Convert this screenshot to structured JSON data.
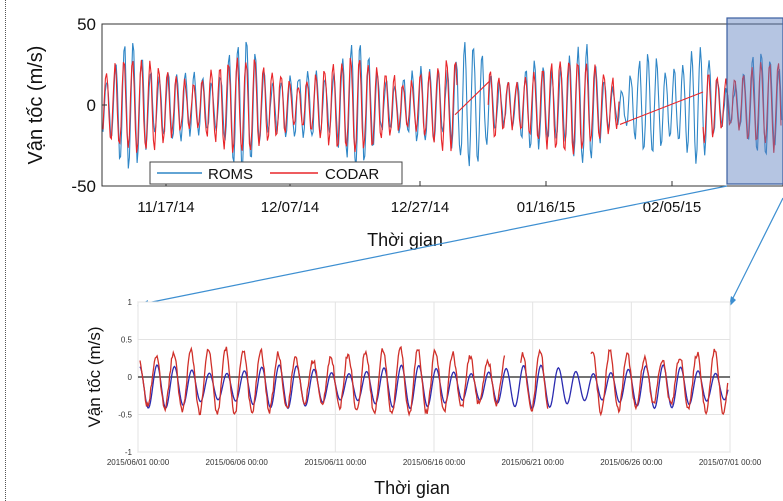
{
  "charts": [
    {
      "id": "top",
      "type": "line",
      "ylabel": "Vận tốc (m/s)",
      "xlabel": "Thời gian",
      "y_ticks": [
        50,
        0,
        -50
      ],
      "x_ticks": [
        "11/17/14",
        "12/07/14",
        "12/27/14",
        "01/16/15",
        "02/05/15"
      ],
      "ylim": [
        -50,
        50
      ],
      "legend": {
        "placement": "bottom-left",
        "entries": [
          "ROMS",
          "CODAR"
        ]
      },
      "series": [
        {
          "name": "ROMS",
          "color": "#2f86c6"
        },
        {
          "name": "CODAR",
          "color": "#e8262a"
        }
      ],
      "highlight": {
        "color": "#4a6fb5",
        "range": "last ~month of record (zoom window)"
      }
    },
    {
      "id": "bottom",
      "type": "line",
      "ylabel": "Vận tốc (m/s)",
      "xlabel": "Thời gian",
      "y_ticks": [
        "1",
        "0.5",
        "0",
        "-0.5",
        "-1"
      ],
      "ylim": [
        -1,
        1
      ],
      "x_ticks": [
        "2015/06/01 00:00",
        "2015/06/06 00:00",
        "2015/06/11 00:00",
        "2015/06/16 00:00",
        "2015/06/21 00:00",
        "2015/06/26 00:00",
        "2015/07/01 00:00"
      ],
      "grid": true,
      "series": [
        {
          "color": "#2b2bb0"
        },
        {
          "color": "#d0302a"
        }
      ]
    }
  ],
  "chart_data": [
    {
      "type": "line",
      "title": "",
      "ylabel": "Vận tốc (m/s)",
      "xlabel": "Thời gian",
      "ylim": [
        -50,
        50
      ],
      "x_tick_labels": [
        "11/17/14",
        "12/07/14",
        "12/27/14",
        "01/16/15",
        "02/05/15"
      ],
      "series": [
        {
          "name": "ROMS",
          "description_range": [
            -48,
            50
          ]
        },
        {
          "name": "CODAR",
          "description_range": [
            -35,
            35
          ]
        }
      ]
    },
    {
      "type": "line",
      "title": "",
      "ylabel": "Vận tốc (m/s)",
      "xlabel": "Thời gian",
      "ylim": [
        -1,
        1
      ],
      "x_tick_labels": [
        "2015/06/01 00:00",
        "2015/06/06 00:00",
        "2015/06/11 00:00",
        "2015/06/16 00:00",
        "2015/06/21 00:00",
        "2015/06/26 00:00",
        "2015/07/01 00:00"
      ],
      "series": [
        {
          "description_range": [
            -0.45,
            0.25
          ]
        },
        {
          "description_range": [
            -0.5,
            0.5
          ]
        }
      ]
    }
  ]
}
